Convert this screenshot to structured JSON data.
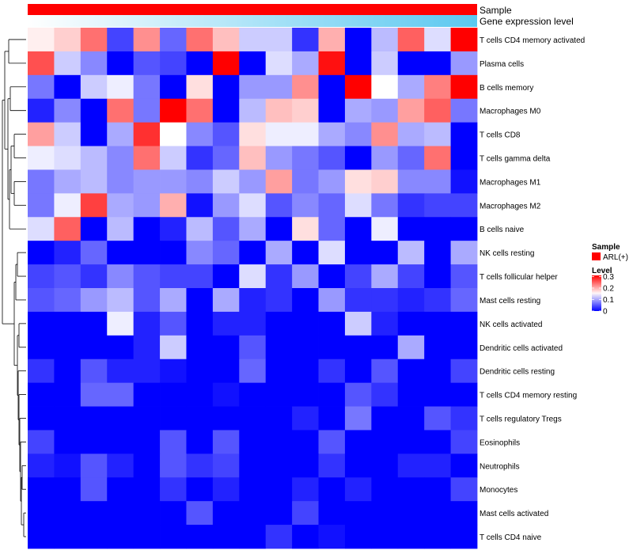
{
  "chart_data": {
    "type": "heatmap",
    "annotation_tracks": [
      {
        "label": "Sample",
        "color": "#ff0000"
      },
      {
        "label": "Gene expression level",
        "gradient": [
          "#ffffff",
          "#5bc8f0"
        ]
      }
    ],
    "rows": [
      "T cells CD4 memory activated",
      "Plasma cells",
      "B cells memory",
      "Macrophages M0",
      "T cells CD8",
      "T cells gamma delta",
      "Macrophages M1",
      "Macrophages M2",
      "B cells naive",
      "NK cells resting",
      "T cells follicular helper",
      "Mast cells resting",
      "NK cells activated",
      "Dendritic cells activated",
      "Dendritic cells resting",
      "T cells CD4 memory resting",
      "T cells regulatory  Tregs",
      "Eosinophils",
      "Neutrophils",
      "Monocytes",
      "Mast cells activated",
      "T cells CD4 naive"
    ],
    "values": [
      [
        0.16,
        0.18,
        0.24,
        0.04,
        0.22,
        0.06,
        0.24,
        0.19,
        0.12,
        0.12,
        0.03,
        0.2,
        0.0,
        0.11,
        0.25,
        0.13,
        0.31
      ],
      [
        0.26,
        0.12,
        0.08,
        0.0,
        0.05,
        0.04,
        0.0,
        0.31,
        0.0,
        0.13,
        0.1,
        0.3,
        0.0,
        0.12,
        0.0,
        0.0,
        0.09
      ],
      [
        0.07,
        0.0,
        0.12,
        0.14,
        0.07,
        0.0,
        0.17,
        0.0,
        0.09,
        0.09,
        0.22,
        0.0,
        0.31,
        0.15,
        0.1,
        0.23,
        0.31
      ],
      [
        0.02,
        0.08,
        0.0,
        0.24,
        0.07,
        0.31,
        0.24,
        0.0,
        0.11,
        0.19,
        0.18,
        0.0,
        0.1,
        0.09,
        0.21,
        0.25,
        0.07
      ],
      [
        0.21,
        0.12,
        0.0,
        0.1,
        0.28,
        0.15,
        0.08,
        0.05,
        0.17,
        0.14,
        0.14,
        0.1,
        0.08,
        0.22,
        0.1,
        0.11,
        0.0
      ],
      [
        0.14,
        0.13,
        0.11,
        0.08,
        0.24,
        0.12,
        0.03,
        0.06,
        0.19,
        0.09,
        0.07,
        0.05,
        0.0,
        0.09,
        0.06,
        0.24,
        0.0
      ],
      [
        0.07,
        0.1,
        0.11,
        0.08,
        0.09,
        0.09,
        0.08,
        0.12,
        0.09,
        0.21,
        0.07,
        0.09,
        0.17,
        0.18,
        0.08,
        0.08,
        0.01
      ],
      [
        0.07,
        0.14,
        0.27,
        0.1,
        0.09,
        0.2,
        0.01,
        0.09,
        0.13,
        0.05,
        0.08,
        0.06,
        0.13,
        0.07,
        0.03,
        0.04,
        0.04
      ],
      [
        0.13,
        0.25,
        0.0,
        0.11,
        0.0,
        0.02,
        0.11,
        0.05,
        0.1,
        0.0,
        0.17,
        0.06,
        0.0,
        0.14,
        0.0,
        0.0,
        0.0
      ],
      [
        0.0,
        0.02,
        0.06,
        0.0,
        0.0,
        0.0,
        0.08,
        0.06,
        0.0,
        0.1,
        0.0,
        0.13,
        0.0,
        0.0,
        0.11,
        0.0,
        0.1
      ],
      [
        0.04,
        0.05,
        0.03,
        0.08,
        0.05,
        0.04,
        0.04,
        0.0,
        0.13,
        0.03,
        0.09,
        0.0,
        0.04,
        0.1,
        0.04,
        0.0,
        0.05
      ],
      [
        0.05,
        0.06,
        0.09,
        0.11,
        0.05,
        0.1,
        0.0,
        0.1,
        0.02,
        0.03,
        0.0,
        0.09,
        0.03,
        0.03,
        0.02,
        0.03,
        0.06
      ],
      [
        0.0,
        0.0,
        0.0,
        0.14,
        0.02,
        0.05,
        0.0,
        0.02,
        0.02,
        0.0,
        0.0,
        0.0,
        0.12,
        0.02,
        0.0,
        0.0,
        0.0
      ],
      [
        0.0,
        0.0,
        0.0,
        0.0,
        0.02,
        0.12,
        0.0,
        0.0,
        0.05,
        0.0,
        0.0,
        0.0,
        0.0,
        0.0,
        0.1,
        0.0,
        0.0
      ],
      [
        0.03,
        0.0,
        0.05,
        0.02,
        0.02,
        0.01,
        0.0,
        0.0,
        0.06,
        0.0,
        0.0,
        0.03,
        0.0,
        0.05,
        0.0,
        0.0,
        0.04
      ],
      [
        0.0,
        0.0,
        0.06,
        0.06,
        0.0,
        0.0,
        0.0,
        0.01,
        0.0,
        0.0,
        0.0,
        0.0,
        0.05,
        0.03,
        0.0,
        0.0,
        0.0
      ],
      [
        0.0,
        0.0,
        0.0,
        0.0,
        0.0,
        0.0,
        0.0,
        0.0,
        0.0,
        0.0,
        0.02,
        0.0,
        0.07,
        0.0,
        0.0,
        0.05,
        0.03
      ],
      [
        0.04,
        0.0,
        0.0,
        0.0,
        0.0,
        0.05,
        0.0,
        0.05,
        0.0,
        0.0,
        0.0,
        0.05,
        0.0,
        0.0,
        0.0,
        0.0,
        0.04
      ],
      [
        0.02,
        0.01,
        0.05,
        0.02,
        0.0,
        0.05,
        0.03,
        0.04,
        0.0,
        0.0,
        0.0,
        0.03,
        0.0,
        0.0,
        0.02,
        0.02,
        0.0
      ],
      [
        0.0,
        0.0,
        0.05,
        0.0,
        0.0,
        0.03,
        0.0,
        0.02,
        0.0,
        0.0,
        0.02,
        0.0,
        0.02,
        0.0,
        0.0,
        0.0,
        0.04
      ],
      [
        0.0,
        0.0,
        0.0,
        0.0,
        0.0,
        0.0,
        0.05,
        0.0,
        0.0,
        0.0,
        0.04,
        0.0,
        0.0,
        0.0,
        0.0,
        0.0,
        0.0
      ],
      [
        0.0,
        0.0,
        0.0,
        0.0,
        0.0,
        0.0,
        0.0,
        0.0,
        0.0,
        0.03,
        0.0,
        0.01,
        0.0,
        0.0,
        0.0,
        0.0,
        0.0
      ]
    ],
    "color_scale": {
      "min": 0,
      "mid": 0.15,
      "max": 0.31,
      "low": "#0000ff",
      "midColor": "#ffffff",
      "high": "#ff0000"
    },
    "legend_sample": {
      "title": "Sample",
      "entries": [
        {
          "label": "ARL(+)",
          "color": "#ff0000"
        }
      ]
    },
    "legend_level": {
      "title": "Level",
      "ticks": [
        "0.3",
        "0.2",
        "0.1",
        "0"
      ],
      "tick_values": [
        0.3,
        0.2,
        0.1,
        0
      ]
    },
    "dendrogram": "rows, left side",
    "legend_position": "right"
  }
}
